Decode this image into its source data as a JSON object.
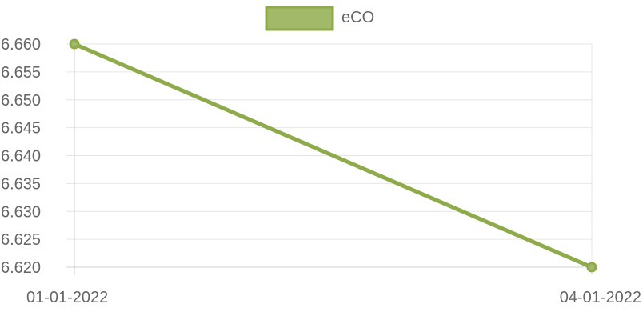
{
  "chart_data": {
    "type": "line",
    "x": [
      "01-01-2022",
      "04-01-2022"
    ],
    "series": [
      {
        "name": "eCO",
        "values": [
          6.66,
          6.62
        ],
        "color": "#8faa4b",
        "fill": "#a2b96a"
      }
    ],
    "y_ticks": [
      "6.660",
      "6.655",
      "6.650",
      "6.645",
      "6.640",
      "6.635",
      "6.630",
      "6.625",
      "6.620"
    ],
    "ylim": [
      6.62,
      6.66
    ],
    "legend_position": "top",
    "grid": true,
    "colors": {
      "grid": "#e6e6e6",
      "axis": "#d0d0d0",
      "text": "#666666"
    }
  }
}
